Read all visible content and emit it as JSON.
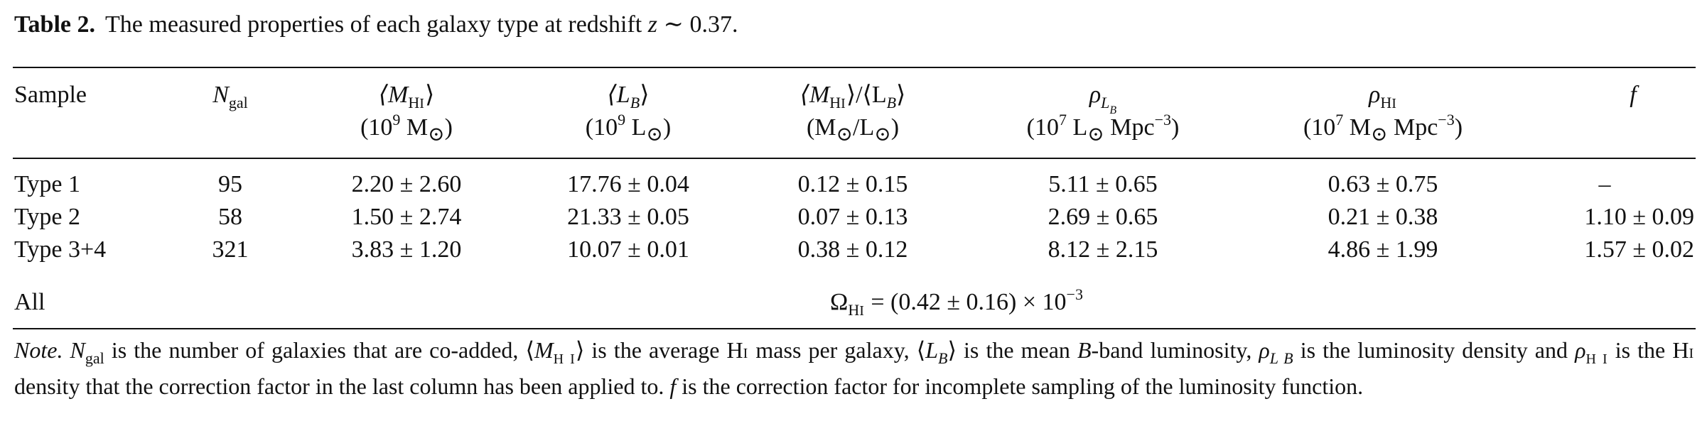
{
  "caption": {
    "label": "Table 2.",
    "text_before_z": "The measured properties of each galaxy type at redshift",
    "z_symbol": "z",
    "text_after_z": "∼ 0.37."
  },
  "header": {
    "sample": "Sample",
    "ngal": {
      "main": "N",
      "sub": "gal"
    },
    "mhi": {
      "symbol": "⟨M",
      "sub_main": "H",
      "sub_roman": "I",
      "close": "⟩",
      "unit_pre": "(10",
      "unit_exp": "9",
      "unit_post": " M",
      "sun": "⊙",
      "unit_close": ")"
    },
    "lb": {
      "symbol": "⟨L",
      "sub": "B",
      "close": "⟩",
      "unit_pre": "(10",
      "unit_exp": "9",
      "unit_post": " L",
      "sun": "⊙",
      "unit_close": ")"
    },
    "ratio": {
      "m_open": "⟨M",
      "m_sub_main": "H",
      "m_sub_roman": "I",
      "m_close": "⟩/⟨L",
      "l_sub": "B",
      "l_close": "⟩",
      "unit_open": "(M",
      "sun1": "⊙",
      "unit_mid": "/L",
      "sun2": "⊙",
      "unit_close": ")"
    },
    "rho_lb": {
      "symbol": "ρ",
      "sub_main": "L",
      "sub_sub": "B",
      "unit_pre": "(10",
      "unit_exp": "7",
      "unit_post": " L",
      "sun": "⊙",
      "unit_mpc": " Mpc",
      "mpc_exp": "−3",
      "unit_close": ")"
    },
    "rho_hi": {
      "symbol": "ρ",
      "sub_main": "H",
      "sub_roman": "I",
      "unit_pre": "(10",
      "unit_exp": "7",
      "unit_post": " M",
      "sun": "⊙",
      "unit_mpc": " Mpc",
      "mpc_exp": "−3",
      "unit_close": ")"
    },
    "f": "f"
  },
  "rows": [
    {
      "sample": "Type 1",
      "ngal": "95",
      "mhi": "2.20 ± 2.60",
      "lb": "17.76 ± 0.04",
      "ratio": "0.12 ± 0.15",
      "rho_lb": "5.11 ± 0.65",
      "rho_hi": "0.63 ± 0.75",
      "f": "–"
    },
    {
      "sample": "Type 2",
      "ngal": "58",
      "mhi": "1.50 ± 2.74",
      "lb": "21.33 ± 0.05",
      "ratio": "0.07 ± 0.13",
      "rho_lb": "2.69 ± 0.65",
      "rho_hi": "0.21 ± 0.38",
      "f": "1.10 ± 0.09"
    },
    {
      "sample": "Type 3+4",
      "ngal": "321",
      "mhi": "3.83 ± 1.20",
      "lb": "10.07 ± 0.01",
      "ratio": "0.38 ± 0.12",
      "rho_lb": "8.12 ± 2.15",
      "rho_hi": "4.86 ± 1.99",
      "f": "1.57 ± 0.02"
    }
  ],
  "all_row": {
    "sample": "All",
    "omega": "Ω",
    "omega_sub_main": "H",
    "omega_sub_roman": "I",
    "value_pre": " = (0.42 ± 0.16) × 10",
    "value_exp": "−3"
  },
  "note": {
    "note_label": "Note.",
    "p1": "N",
    "p1_sub": "gal",
    "p2": " is the number of galaxies that are co-added, ⟨",
    "p3": "M",
    "p3_sub": "H I",
    "p4": "⟩ is the average H",
    "p4_sc": "I",
    "p5": " mass per galaxy, ⟨",
    "p6": "L",
    "p6_sub": "B",
    "p7": "⟩ is the mean ",
    "p8": "B",
    "p9": "-band luminosity, ",
    "p10": "ρ",
    "p10_sub": "L B",
    "p11": " is the luminosity density and ",
    "p12": "ρ",
    "p12_sub": "H I",
    "p13": " is the H",
    "p13_sc": "I",
    "p14": " density that the correction factor in the last column has been applied to. ",
    "p15": "f",
    "p16": " is the correction factor for incomplete sampling of the luminosity function."
  }
}
